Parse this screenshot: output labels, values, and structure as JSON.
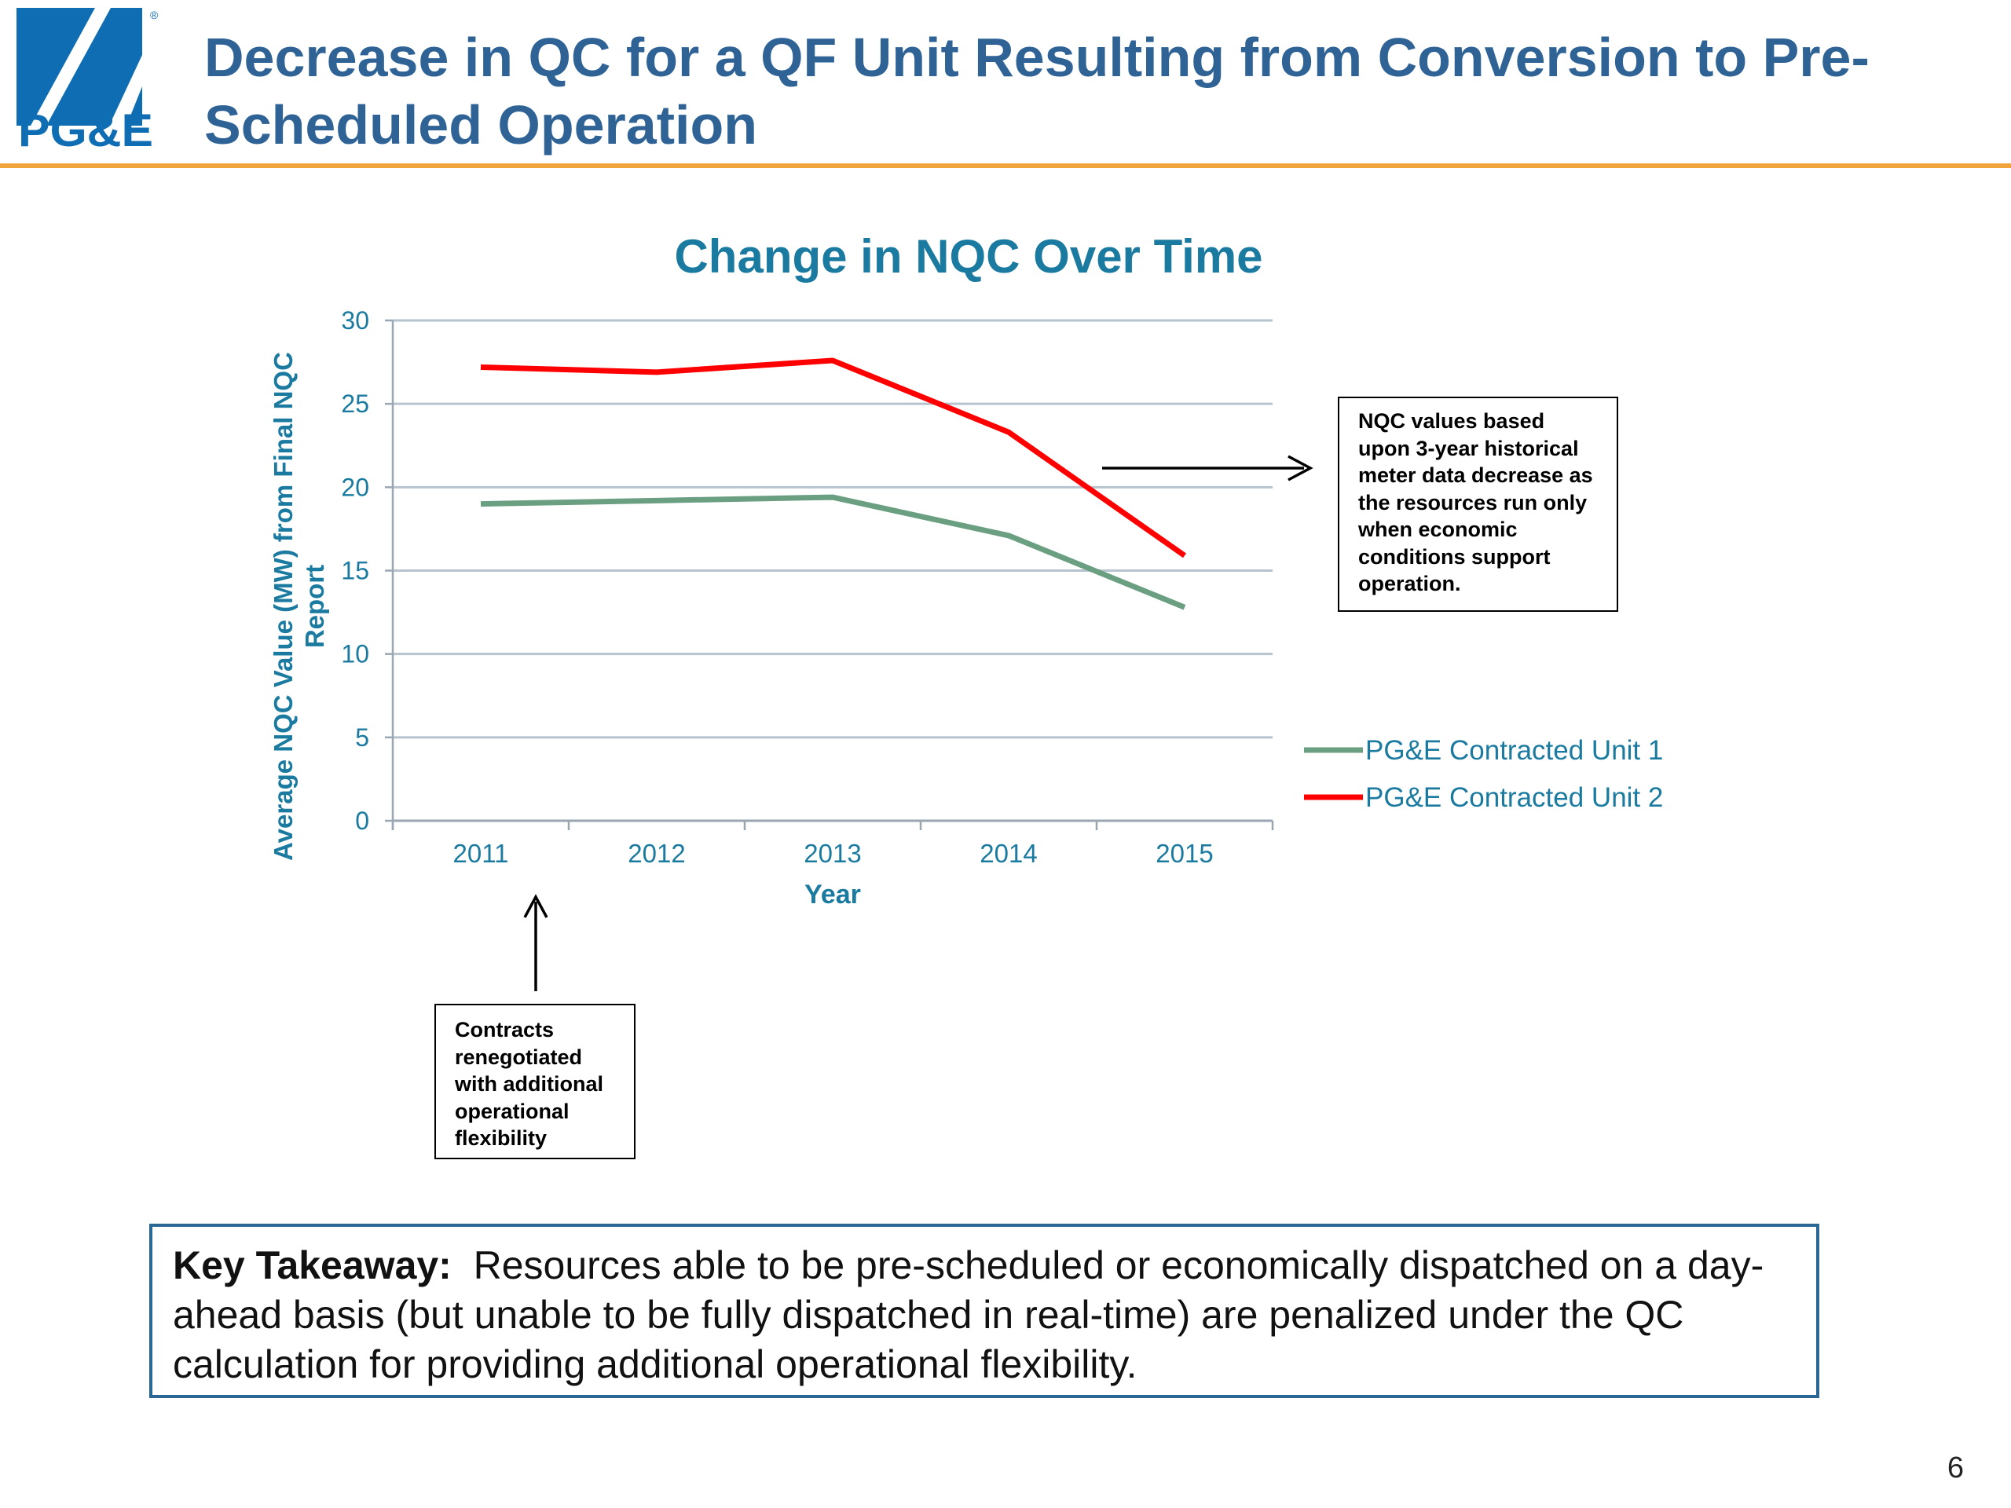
{
  "brand": {
    "logo_text": "PG&E",
    "logo_mark": "®",
    "colors": {
      "logo_blue": "#0f6eb3",
      "logo_orange": "#f0a43a",
      "title_blue": "#2f6396",
      "chart_teal": "#1a7aa0"
    }
  },
  "slide": {
    "title": "Decrease in QC for a QF Unit Resulting from Conversion to Pre-Scheduled Operation",
    "page_number": "6"
  },
  "chart_data": {
    "type": "line",
    "title": "Change in NQC Over Time",
    "xlabel": "Year",
    "ylabel": "Average NQC Value (MW) from Final NQC Report",
    "categories": [
      "2011",
      "2012",
      "2013",
      "2014",
      "2015"
    ],
    "ylim": [
      0,
      30
    ],
    "yticks": [
      0,
      5,
      10,
      15,
      20,
      25,
      30
    ],
    "grid": true,
    "legend_position": "right",
    "series": [
      {
        "name": "PG&E Contracted Unit 1",
        "color": "#6b9f82",
        "values": [
          19.0,
          19.2,
          19.4,
          17.1,
          12.8
        ]
      },
      {
        "name": "PG&E Contracted Unit 2",
        "color": "#ff0000",
        "values": [
          27.2,
          26.9,
          27.6,
          23.3,
          15.9
        ]
      }
    ]
  },
  "annotations": {
    "right_callout": "NQC values  based upon 3-year historical meter data  decrease as the resources run only when economic conditions support operation.",
    "bottom_callout": "Contracts renegotiated with additional operational flexibility"
  },
  "takeaway": {
    "label": "Key Takeaway:",
    "text": "Resources able to be pre-scheduled or economically dispatched on a day-ahead basis (but unable to be fully dispatched in real-time) are penalized under the QC calculation for providing additional operational flexibility."
  }
}
